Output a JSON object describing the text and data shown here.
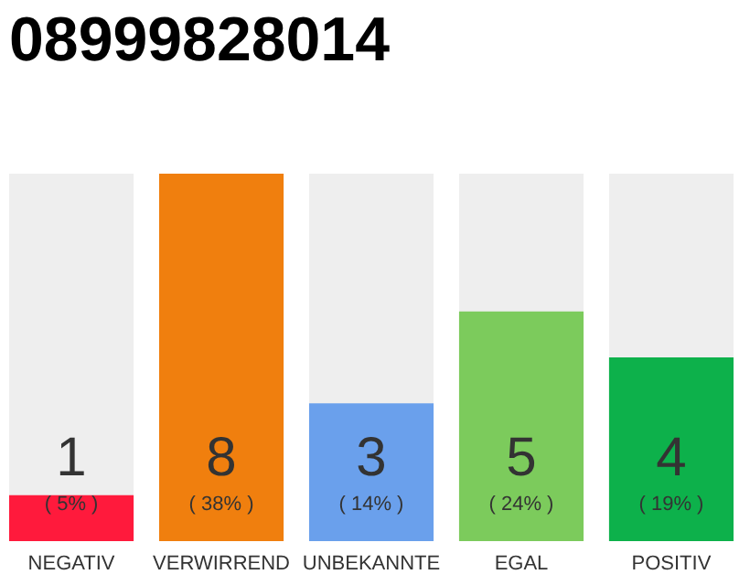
{
  "chart_data": {
    "type": "bar",
    "title": "08999828014",
    "categories": [
      "NEGATIV",
      "VERWIRREND",
      "UNBEKANNTE",
      "EGAL",
      "POSITIV"
    ],
    "values": [
      1,
      8,
      3,
      5,
      4
    ],
    "colors": [
      "#ff1a3c",
      "#f07f0e",
      "#6aa0ec",
      "#7ccb5c",
      "#0db14b"
    ],
    "ylim": [
      0,
      8
    ],
    "data_labels": true,
    "tick_labels": "x",
    "annotations": [
      "( 5% )",
      "( 38% )",
      "( 14% )",
      "( 24% )",
      "( 19% )"
    ]
  }
}
